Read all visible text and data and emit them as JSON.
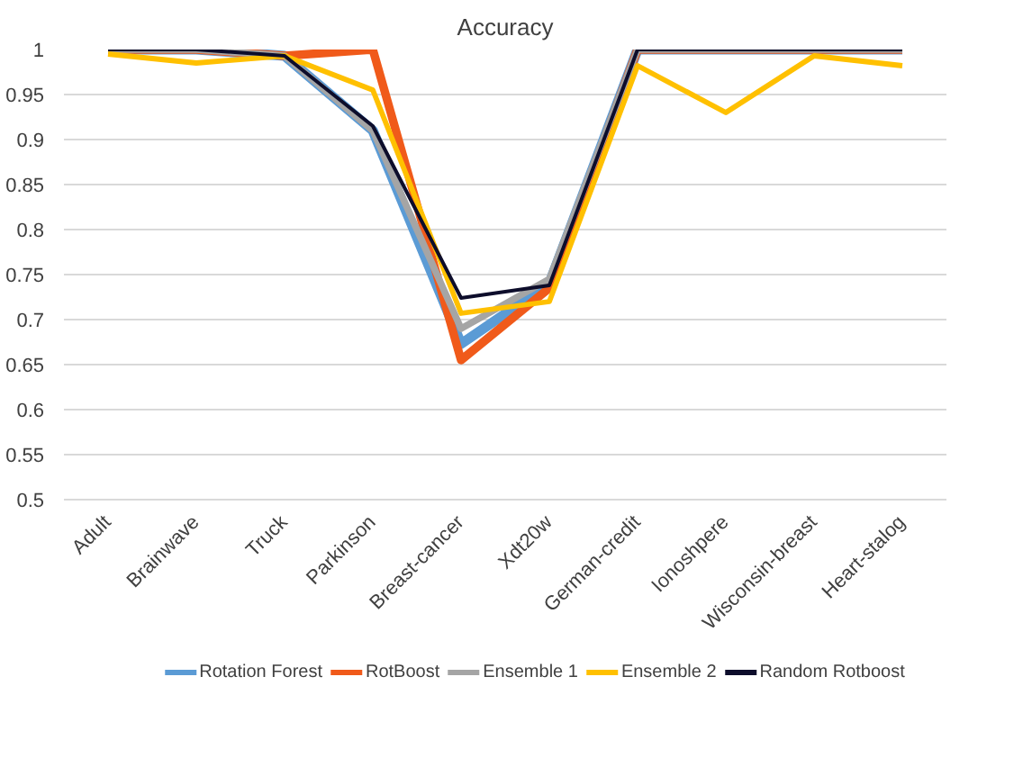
{
  "chart_data": {
    "type": "line",
    "title": "Accuracy",
    "categories": [
      "Adult",
      "Brainwave",
      "Truck",
      "Parkinson",
      "Breast-cancer",
      "Xdt20w",
      "German-credit",
      "Ionoshpere",
      "Wisconsin-breast",
      "Heart-stalog"
    ],
    "series": [
      {
        "name": "Rotation Forest",
        "color": "#5b9bd5",
        "values": [
          1,
          1,
          0.993,
          0.91,
          0.673,
          0.74,
          1,
          1,
          1,
          1
        ]
      },
      {
        "name": "RotBoost",
        "color": "#f05a1a",
        "values": [
          1,
          1,
          0.993,
          1,
          0.655,
          0.735,
          1,
          1,
          1,
          1
        ]
      },
      {
        "name": "Ensemble 1",
        "color": "#a5a5a5",
        "values": [
          1,
          1,
          0.993,
          0.91,
          0.69,
          0.745,
          1,
          1,
          1,
          1
        ]
      },
      {
        "name": "Ensemble 2",
        "color": "#ffc000",
        "values": [
          0.995,
          0.985,
          0.993,
          0.955,
          0.707,
          0.72,
          0.982,
          0.93,
          0.993,
          0.982
        ]
      },
      {
        "name": "Random Rotboost",
        "color": "#0d0d2b",
        "values": [
          1,
          1,
          0.993,
          0.915,
          0.724,
          0.738,
          1,
          1,
          1,
          1
        ]
      }
    ],
    "ylim": [
      0.5,
      1
    ],
    "yticks": [
      0.5,
      0.55,
      0.6,
      0.65,
      0.7,
      0.75,
      0.8,
      0.85,
      0.9,
      0.95,
      1
    ],
    "grid": "y",
    "legend": "bottom",
    "marker": "none",
    "line_style": "solid"
  }
}
